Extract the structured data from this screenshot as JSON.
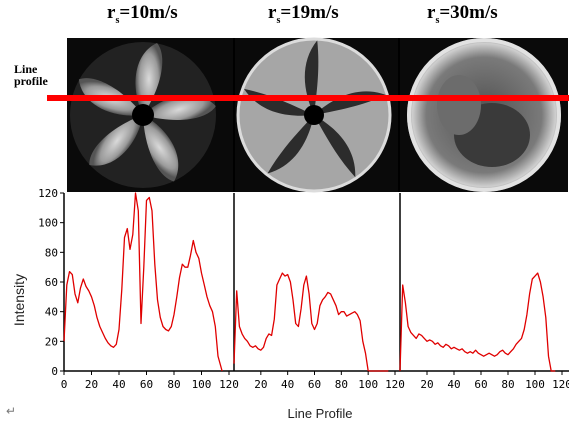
{
  "figure": {
    "panel_titles": [
      {
        "r": "r",
        "sub": "s",
        "eq": "=10m/s"
      },
      {
        "r": "r",
        "sub": "s",
        "eq": "=19m/s"
      },
      {
        "r": "r",
        "sub": "s",
        "eq": "=30m/s"
      }
    ],
    "line_profile_label": [
      "Line",
      "profile"
    ],
    "colors": {
      "profile_line": "#ff0000",
      "curve": "#e00000",
      "axis": "#000000"
    }
  },
  "chart_data": {
    "type": "line",
    "xlabel": "Line Profile",
    "ylabel": "Intensity",
    "ylim": [
      0,
      120
    ],
    "yticks": [
      "0",
      "20",
      "40",
      "60",
      "80",
      "100",
      "120"
    ],
    "xlim": [
      0,
      120
    ],
    "xtick_rows": [
      [
        "0",
        "20",
        "40",
        "60",
        "80",
        "100",
        "120"
      ],
      [
        "20",
        "40",
        "60",
        "80",
        "100",
        "120"
      ],
      [
        "20",
        "40",
        "60",
        "80",
        "100",
        "120"
      ]
    ],
    "series": [
      {
        "x": [
          0,
          2,
          4,
          6,
          8,
          10,
          12,
          14,
          16,
          18,
          20,
          22,
          24,
          26,
          28,
          30,
          32,
          34,
          36,
          38,
          40,
          42,
          44,
          46,
          48,
          50,
          52,
          54,
          56,
          58,
          60,
          62,
          64,
          66,
          68,
          70,
          72,
          74,
          76,
          78,
          80,
          82,
          84,
          86,
          88,
          90,
          92,
          94,
          96,
          98,
          100,
          102,
          104,
          106,
          108,
          110,
          112,
          115
        ],
        "y": [
          20,
          58,
          67,
          65,
          52,
          46,
          56,
          62,
          57,
          54,
          50,
          44,
          36,
          30,
          26,
          22,
          19,
          17,
          16,
          18,
          28,
          55,
          90,
          96,
          82,
          92,
          120,
          108,
          32,
          70,
          115,
          117,
          108,
          72,
          48,
          36,
          30,
          28,
          27,
          30,
          38,
          50,
          63,
          72,
          70,
          70,
          78,
          88,
          80,
          76,
          66,
          58,
          50,
          44,
          40,
          30,
          10,
          0
        ]
      },
      {
        "x": [
          0,
          2,
          4,
          6,
          8,
          10,
          12,
          14,
          16,
          18,
          20,
          22,
          24,
          26,
          28,
          30,
          32,
          34,
          36,
          38,
          40,
          42,
          44,
          46,
          48,
          50,
          52,
          54,
          56,
          58,
          60,
          62,
          64,
          66,
          68,
          70,
          72,
          74,
          76,
          78,
          80,
          82,
          84,
          86,
          88,
          90,
          92,
          94,
          96,
          98,
          100,
          102,
          104,
          106,
          108,
          110,
          112,
          115
        ],
        "y": [
          5,
          54,
          30,
          25,
          22,
          20,
          17,
          16,
          17,
          15,
          14,
          16,
          22,
          25,
          24,
          35,
          58,
          62,
          66,
          64,
          65,
          60,
          48,
          32,
          30,
          42,
          58,
          64,
          52,
          32,
          28,
          32,
          44,
          48,
          50,
          53,
          52,
          48,
          44,
          38,
          40,
          40,
          37,
          38,
          39,
          40,
          38,
          34,
          20,
          12,
          0,
          0,
          0,
          0,
          0,
          0,
          0,
          0
        ]
      },
      {
        "x": [
          0,
          2,
          4,
          6,
          8,
          10,
          12,
          14,
          16,
          18,
          20,
          22,
          24,
          26,
          28,
          30,
          32,
          34,
          36,
          38,
          40,
          42,
          44,
          46,
          48,
          50,
          52,
          54,
          56,
          58,
          60,
          62,
          64,
          66,
          68,
          70,
          72,
          74,
          76,
          78,
          80,
          82,
          84,
          86,
          88,
          90,
          92,
          94,
          96,
          98,
          100,
          102,
          104,
          106,
          108,
          110,
          112,
          115
        ],
        "y": [
          0,
          58,
          46,
          30,
          26,
          24,
          22,
          25,
          24,
          22,
          20,
          21,
          20,
          18,
          19,
          17,
          16,
          18,
          17,
          15,
          16,
          15,
          14,
          15,
          13,
          12,
          13,
          12,
          14,
          12,
          11,
          10,
          11,
          12,
          11,
          10,
          11,
          13,
          14,
          12,
          11,
          13,
          15,
          18,
          20,
          22,
          28,
          38,
          52,
          62,
          64,
          66,
          60,
          50,
          36,
          10,
          0,
          0
        ]
      }
    ]
  }
}
